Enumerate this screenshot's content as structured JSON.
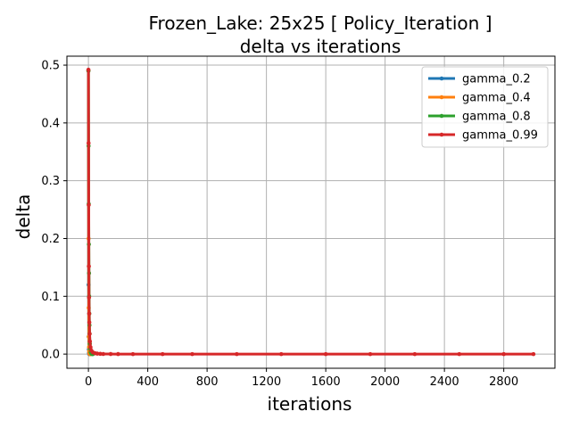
{
  "chart_data": {
    "type": "line",
    "title": "Frozen_Lake: 25x25 [ Policy_Iteration ]",
    "subtitle": "delta vs iterations",
    "xlabel": "iterations",
    "ylabel": "delta",
    "xlim": [
      -145,
      3145
    ],
    "ylim": [
      -0.0245,
      0.5155
    ],
    "xticks": [
      0,
      400,
      800,
      1200,
      1600,
      2000,
      2400,
      2800
    ],
    "yticks": [
      0.0,
      0.1,
      0.2,
      0.3,
      0.4,
      0.5
    ],
    "grid": true,
    "legend_position": "top-right",
    "series": [
      {
        "name": "gamma_0.2",
        "color": "#1f77b4",
        "points": [
          [
            0,
            0.49
          ],
          [
            1,
            0.12
          ],
          [
            2,
            0.03
          ],
          [
            3,
            0.008
          ],
          [
            4,
            0.002
          ],
          [
            5,
            0.0005
          ],
          [
            6,
            0.0001
          ],
          [
            7,
            0.0
          ],
          [
            8,
            0.0
          ],
          [
            9,
            0.0
          ],
          [
            10,
            0.0
          ]
        ]
      },
      {
        "name": "gamma_0.4",
        "color": "#ff7f0e",
        "points": [
          [
            0,
            0.49
          ],
          [
            1,
            0.2
          ],
          [
            2,
            0.08
          ],
          [
            3,
            0.03
          ],
          [
            4,
            0.012
          ],
          [
            5,
            0.005
          ],
          [
            6,
            0.002
          ],
          [
            7,
            0.0008
          ],
          [
            8,
            0.0003
          ],
          [
            9,
            0.0001
          ],
          [
            10,
            0.0
          ],
          [
            12,
            0.0
          ],
          [
            15,
            0.0
          ]
        ]
      },
      {
        "name": "gamma_0.8",
        "color": "#2ca02c",
        "points": [
          [
            0,
            0.49
          ],
          [
            1,
            0.36
          ],
          [
            2,
            0.26
          ],
          [
            3,
            0.19
          ],
          [
            4,
            0.14
          ],
          [
            5,
            0.1
          ],
          [
            6,
            0.07
          ],
          [
            7,
            0.05
          ],
          [
            8,
            0.035
          ],
          [
            10,
            0.018
          ],
          [
            12,
            0.009
          ],
          [
            15,
            0.003
          ],
          [
            20,
            0.0005
          ],
          [
            25,
            0.0
          ],
          [
            30,
            0.0
          ]
        ]
      },
      {
        "name": "gamma_0.99",
        "color": "#d62728",
        "points": [
          [
            0,
            0.492
          ],
          [
            1,
            0.365
          ],
          [
            2,
            0.258
          ],
          [
            3,
            0.152
          ],
          [
            4,
            0.098
          ],
          [
            5,
            0.07
          ],
          [
            6,
            0.055
          ],
          [
            8,
            0.035
          ],
          [
            10,
            0.022
          ],
          [
            14,
            0.012
          ],
          [
            20,
            0.006
          ],
          [
            30,
            0.003
          ],
          [
            45,
            0.0015
          ],
          [
            60,
            0.0008
          ],
          [
            80,
            0.0004
          ],
          [
            100,
            0.0002
          ],
          [
            150,
            0.0001
          ],
          [
            200,
            5e-05
          ],
          [
            300,
            0.0
          ],
          [
            500,
            0.0
          ],
          [
            700,
            0.0
          ],
          [
            1000,
            0.0
          ],
          [
            1300,
            0.0
          ],
          [
            1600,
            0.0
          ],
          [
            1900,
            0.0
          ],
          [
            2200,
            0.0
          ],
          [
            2500,
            0.0
          ],
          [
            2800,
            0.0
          ],
          [
            3000,
            0.0
          ]
        ]
      }
    ]
  }
}
